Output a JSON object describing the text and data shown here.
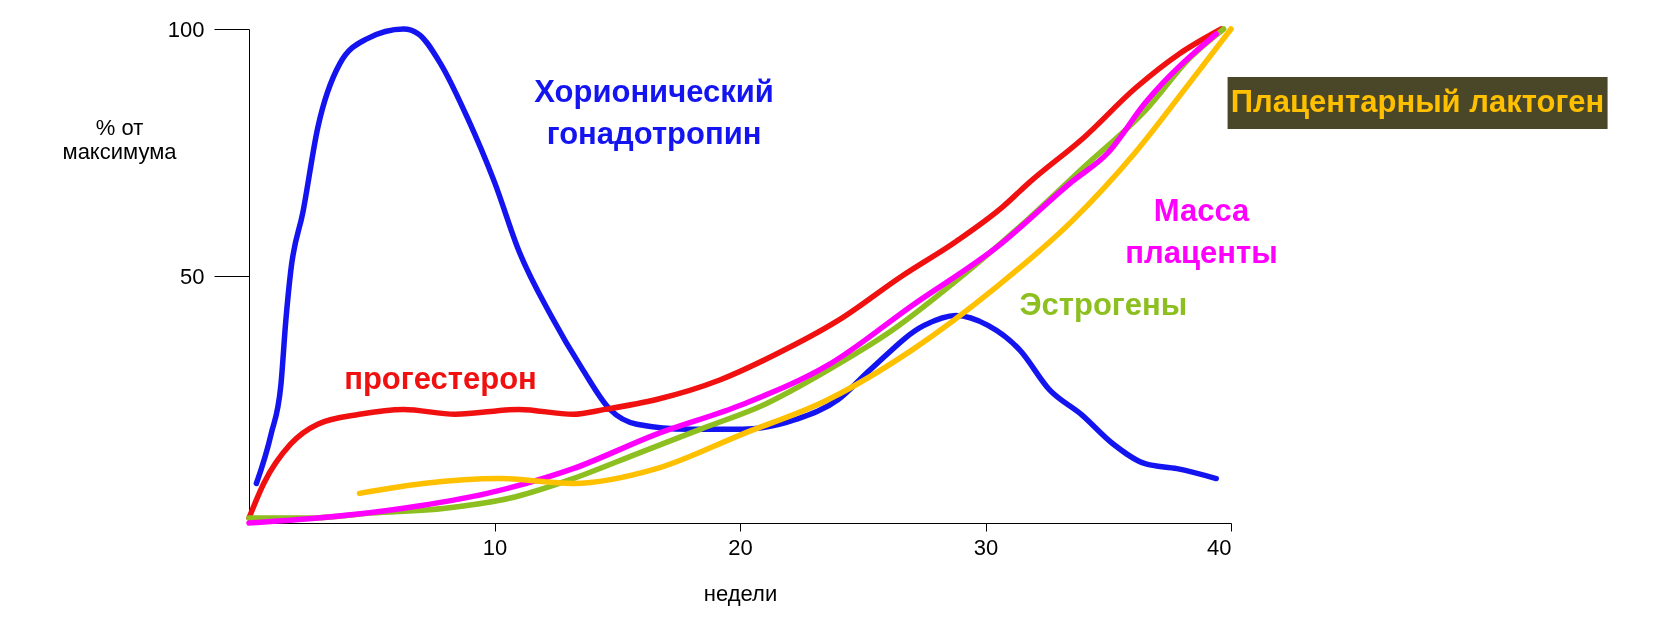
{
  "chart_data": {
    "type": "line",
    "xlabel": "недели",
    "ylabel": "% от максимума",
    "xlim": [
      0,
      40
    ],
    "ylim": [
      0,
      100
    ],
    "xticks": [
      10,
      20,
      30,
      40
    ],
    "yticks": [
      50,
      100
    ],
    "grid": false,
    "legend": false,
    "marker": "none",
    "line_style": "solid",
    "series": [
      {
        "name": "Хорионический гонадотропин",
        "color": "#1414f0",
        "x": [
          0.3,
          0.9,
          1.3,
          1.5,
          1.7,
          2.2,
          2.8,
          3.7,
          4.8,
          6.3,
          6.9,
          7.8,
          8.9,
          10.0,
          11.0,
          12.3,
          13.6,
          14.7,
          15.8,
          17.9,
          20.1,
          22.3,
          24.0,
          25.3,
          27.5,
          28.8,
          30.1,
          31.4,
          32.6,
          33.9,
          35.2,
          36.5,
          37.8,
          39.4
        ],
        "values": [
          8,
          18,
          28,
          41,
          51,
          63,
          80,
          93,
          98,
          100,
          99,
          93,
          82,
          69,
          55,
          42,
          31,
          23,
          20,
          19,
          19,
          21,
          25,
          31,
          40,
          42,
          40,
          35,
          27,
          22,
          16,
          12,
          11,
          9
        ]
      },
      {
        "name": "прогестерон",
        "color": "#f01010",
        "x": [
          0.0,
          0.6,
          1.7,
          2.8,
          4.5,
          6.3,
          8.4,
          11.0,
          13.2,
          14.5,
          16.6,
          19.2,
          21.4,
          24.0,
          26.6,
          28.8,
          30.7,
          31.8,
          34.0,
          36.1,
          37.9,
          39.6
        ],
        "values": [
          1,
          8,
          16,
          20,
          22,
          23,
          22,
          23,
          22,
          23,
          25,
          29,
          34,
          41,
          50,
          57,
          64,
          69,
          78,
          88,
          95,
          100
        ]
      },
      {
        "name": "Эстрогены",
        "color": "#8cbf1f",
        "x": [
          0,
          2.4,
          5.0,
          8.0,
          10.6,
          13.2,
          15.8,
          18.4,
          21.0,
          23.6,
          26.2,
          28.8,
          31.4,
          34.0,
          36.6,
          38.3,
          39.7
        ],
        "values": [
          1,
          1,
          2,
          3,
          5,
          9,
          14,
          19,
          24,
          31,
          39,
          49,
          60,
          72,
          84,
          94,
          100
        ]
      },
      {
        "name": "Масса плаценты",
        "color": "#ff00ff",
        "x": [
          0,
          2.8,
          6.3,
          9.7,
          13.2,
          16.6,
          20.1,
          23.6,
          27.0,
          30.5,
          33.5,
          35.0,
          36.5,
          39.4
        ],
        "values": [
          0,
          1,
          3,
          6,
          11,
          18,
          24,
          32,
          44,
          56,
          69,
          75,
          85,
          99
        ]
      },
      {
        "name": "Плацентарный лактоген",
        "color": "#ffc000",
        "x": [
          4.5,
          7.1,
          10.2,
          13.2,
          16.6,
          20.1,
          23.6,
          27.0,
          30.5,
          33.5,
          36.1,
          38.3,
          40.0
        ],
        "values": [
          6,
          8,
          9,
          8,
          11,
          18,
          25,
          35,
          48,
          61,
          75,
          89,
          100
        ]
      }
    ]
  }
}
